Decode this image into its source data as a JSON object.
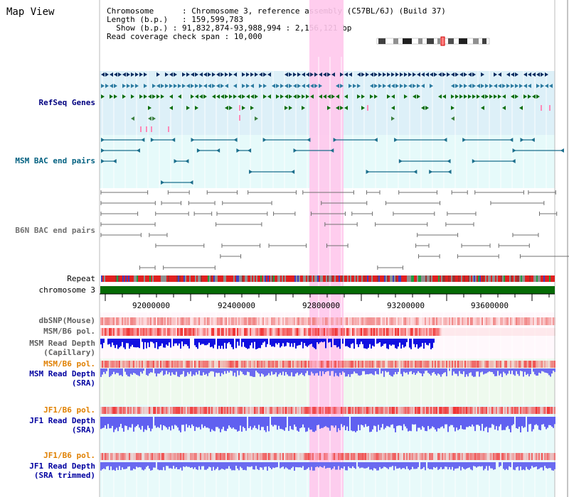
{
  "title": "Map View",
  "info": {
    "chromosome_label": "Chromosome",
    "chromosome_value": "Chromosome 3, reference assembly (C57BL/6J) (Build 37)",
    "length_label": "Length (b.p.)",
    "length_value": "159,599,783",
    "show_label": "Show (b.p.)",
    "show_value": "91,832,874-93,988,994 : 2,156,121 bp",
    "coverage_label": "Read coverage check span",
    "coverage_value": "10,000"
  },
  "tracks": {
    "refseq": "RefSeq Genes",
    "msm_bac": "MSM BAC end pairs",
    "b6n_bac": "B6N BAC end pairs",
    "repeat": "Repeat",
    "chromosome": "chromosome 3",
    "dbsnp": "dbSNP(Mouse)",
    "msm_b6_pol": "MSM/B6 pol.",
    "msm_depth_cap_1": "MSM Read Depth",
    "msm_depth_cap_2": "(Capillary)",
    "msm_b6_pol2": "MSM/B6 pol.",
    "msm_depth_sra_1": "MSM Read Depth",
    "msm_depth_sra_2": "(SRA)",
    "jf1_b6_pol": "JF1/B6 pol.",
    "jf1_depth_sra_1": "JF1 Read Depth",
    "jf1_depth_sra_2": "(SRA)",
    "jf1_b6_pol2": "JF1/B6 pol.",
    "jf1_depth_trim_1": "JF1 Read Depth",
    "jf1_depth_trim_2": "(SRA trimmed)"
  },
  "ticks": [
    "92000000",
    "92400000",
    "92800000",
    "93200000",
    "93600000"
  ],
  "colors": {
    "refseq_label": "#000080",
    "msm_label": "#006080",
    "b6n_label": "#808080",
    "pol_orange": "#e08000",
    "depth_blue": "#0000a0",
    "chromosome_green": "#006400",
    "highlight_pink": "#ffc0e8"
  }
}
